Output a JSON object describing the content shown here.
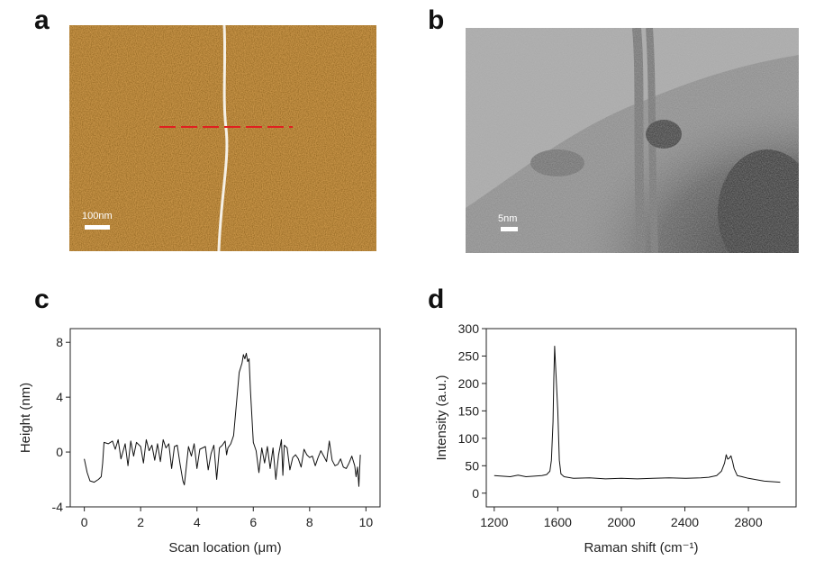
{
  "panels": {
    "a": {
      "letter": "a",
      "scale_label": "100nm"
    },
    "b": {
      "letter": "b",
      "scale_label": "5nm"
    },
    "c": {
      "letter": "c"
    },
    "d": {
      "letter": "d"
    }
  },
  "chart_data": [
    {
      "type": "line",
      "panel": "c",
      "title": "",
      "xlabel": "Scan location (μm)",
      "ylabel": "Height (nm)",
      "xlim": [
        -0.5,
        10.5
      ],
      "ylim": [
        -4,
        9
      ],
      "xticks": [
        0,
        2,
        4,
        6,
        8,
        10
      ],
      "yticks": [
        -4,
        0,
        4,
        8
      ],
      "grid": false,
      "series": [
        {
          "x": [
            0,
            0.1,
            0.2,
            0.35,
            0.5,
            0.6,
            0.65,
            0.7,
            0.85,
            1.0,
            1.1,
            1.2,
            1.3,
            1.45,
            1.55,
            1.65,
            1.75,
            1.85,
            2.0,
            2.1,
            2.2,
            2.3,
            2.4,
            2.5,
            2.6,
            2.7,
            2.8,
            2.9,
            3.0,
            3.1,
            3.2,
            3.3,
            3.4,
            3.5,
            3.55,
            3.6,
            3.7,
            3.8,
            3.9,
            4.0,
            4.1,
            4.2,
            4.3,
            4.4,
            4.5,
            4.6,
            4.7,
            4.8,
            4.9,
            5.0,
            5.05,
            5.1,
            5.2,
            5.3,
            5.4,
            5.5,
            5.6,
            5.65,
            5.7,
            5.75,
            5.8,
            5.85,
            5.9,
            6.0,
            6.1,
            6.2,
            6.3,
            6.4,
            6.5,
            6.6,
            6.7,
            6.8,
            6.9,
            7.0,
            7.05,
            7.1,
            7.2,
            7.3,
            7.4,
            7.5,
            7.6,
            7.7,
            7.8,
            7.9,
            8.0,
            8.1,
            8.2,
            8.3,
            8.4,
            8.5,
            8.6,
            8.7,
            8.8,
            8.9,
            9.0,
            9.1,
            9.2,
            9.3,
            9.4,
            9.5,
            9.6,
            9.65,
            9.7,
            9.75,
            9.8
          ],
          "y": [
            -0.5,
            -1.5,
            -2.1,
            -2.2,
            -2.0,
            -1.8,
            -0.8,
            0.7,
            0.6,
            0.8,
            0.2,
            0.9,
            -0.5,
            0.6,
            -1.0,
            0.8,
            -0.3,
            0.7,
            0.4,
            -0.8,
            0.9,
            0.1,
            0.5,
            -0.6,
            0.6,
            -0.7,
            0.9,
            0.3,
            0.6,
            -1.2,
            0.4,
            0.5,
            -0.9,
            -2.1,
            -2.4,
            -1.5,
            0.4,
            -0.3,
            0.6,
            -1.2,
            0.2,
            0.3,
            0.4,
            -1.3,
            -0.1,
            0.5,
            -2.0,
            0.3,
            0.5,
            0.8,
            -0.2,
            0.3,
            0.6,
            1.2,
            3.5,
            5.8,
            6.5,
            7.1,
            6.8,
            7.2,
            6.6,
            6.8,
            4.5,
            0.7,
            0.1,
            -1.5,
            0.3,
            -0.8,
            0.4,
            -1.2,
            0.3,
            -2.0,
            -0.2,
            0.9,
            -1.7,
            0.5,
            0.3,
            -1.3,
            -0.4,
            -0.2,
            -0.5,
            -1.1,
            0.2,
            -0.2,
            -0.4,
            -0.3,
            -1.0,
            -0.4,
            0.1,
            -0.3,
            -0.7,
            0.8,
            -0.6,
            -1.0,
            -0.9,
            -0.5,
            -1.1,
            -1.2,
            -0.8,
            -0.3,
            -1.0,
            -1.8,
            -1.1,
            -2.5,
            -0.2
          ]
        }
      ]
    },
    {
      "type": "line",
      "panel": "d",
      "title": "",
      "xlabel": "Raman shift (cm⁻¹)",
      "ylabel": "Intensity (a.u.)",
      "xlim": [
        1150,
        3100
      ],
      "ylim": [
        -25,
        300
      ],
      "xticks": [
        1200,
        1600,
        2000,
        2400,
        2800
      ],
      "yticks": [
        0,
        50,
        100,
        150,
        200,
        250,
        300
      ],
      "grid": false,
      "series": [
        {
          "x": [
            1200,
            1250,
            1300,
            1350,
            1400,
            1450,
            1500,
            1530,
            1550,
            1560,
            1570,
            1575,
            1580,
            1585,
            1590,
            1600,
            1610,
            1620,
            1640,
            1700,
            1800,
            1900,
            2000,
            2100,
            2200,
            2300,
            2400,
            2500,
            2550,
            2600,
            2630,
            2650,
            2660,
            2670,
            2680,
            2690,
            2700,
            2710,
            2730,
            2760,
            2800,
            2900,
            3000
          ],
          "y": [
            32,
            31,
            30,
            33,
            30,
            31,
            32,
            34,
            40,
            60,
            130,
            210,
            268,
            240,
            210,
            150,
            60,
            35,
            30,
            27,
            28,
            26,
            27,
            26,
            27,
            28,
            27,
            28,
            29,
            32,
            40,
            55,
            70,
            62,
            64,
            68,
            58,
            45,
            32,
            30,
            27,
            22,
            20
          ]
        }
      ]
    }
  ]
}
